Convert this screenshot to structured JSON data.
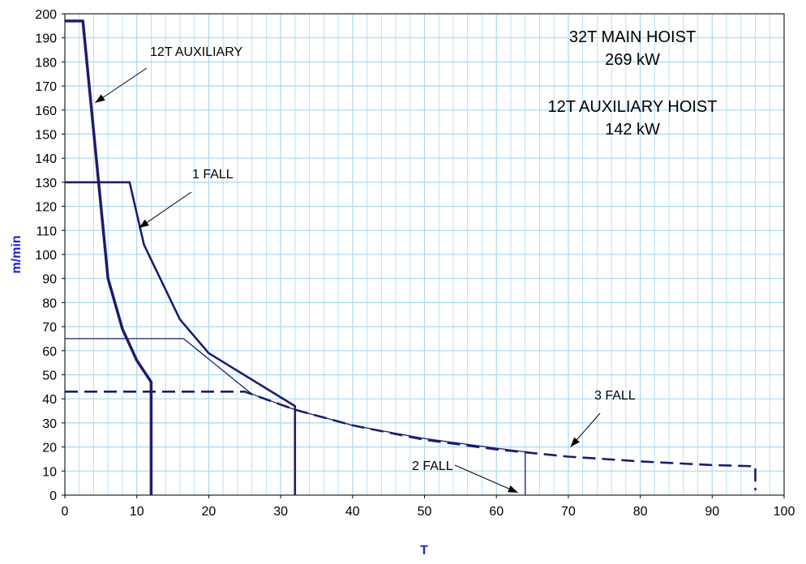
{
  "chart_data": {
    "type": "line",
    "title": "",
    "xlabel": "T",
    "ylabel": "m/min",
    "xlim": [
      0,
      100
    ],
    "ylim": [
      0,
      200
    ],
    "x_major_ticks": [
      0,
      10,
      20,
      30,
      40,
      50,
      60,
      70,
      80,
      90,
      100
    ],
    "x_minor_step": 2,
    "y_major_ticks": [
      0,
      10,
      20,
      30,
      40,
      50,
      60,
      70,
      80,
      90,
      100,
      110,
      120,
      130,
      140,
      150,
      160,
      170,
      180,
      190,
      200
    ],
    "grid": true,
    "colors": {
      "plot_background": "#ffffff",
      "grid": "#a6d9f2",
      "curve": "#1c1c6e",
      "axis_title": "#1f1fd0"
    },
    "series": [
      {
        "label": "12T AUXILIARY",
        "style": "thick",
        "x": [
          0,
          2.5,
          6,
          8,
          10,
          12,
          12
        ],
        "y": [
          197,
          197,
          90,
          69,
          56,
          47,
          0
        ]
      },
      {
        "label": "1 FALL",
        "style": "medium",
        "x": [
          0,
          9,
          11,
          16,
          20,
          32,
          32
        ],
        "y": [
          130,
          130,
          104,
          73,
          59,
          37,
          0
        ]
      },
      {
        "label": "2 FALL",
        "style": "thin",
        "x": [
          0,
          16.5,
          26,
          32,
          40,
          50,
          60,
          64,
          64
        ],
        "y": [
          65,
          65,
          42,
          35.5,
          29,
          23.5,
          19.5,
          18,
          0
        ]
      },
      {
        "label": "3 FALL",
        "style": "dashed",
        "x": [
          0,
          25,
          32,
          40,
          50,
          60,
          70,
          80,
          90,
          96,
          96
        ],
        "y": [
          43,
          43,
          35.5,
          29,
          23,
          19,
          16,
          14,
          12.5,
          12,
          2
        ]
      }
    ],
    "annotations": [
      {
        "text": "12T AUXILIARY",
        "arrow_to": [
          4.2,
          163
        ]
      },
      {
        "text": "1 FALL",
        "arrow_to": [
          10.3,
          111
        ]
      },
      {
        "text": "2 FALL",
        "arrow_to": [
          63,
          1
        ]
      },
      {
        "text": "3 FALL",
        "arrow_to": [
          70.3,
          20
        ]
      }
    ],
    "info_text": [
      "32T MAIN HOIST",
      "269 kW",
      "12T AUXILIARY HOIST",
      "142 kW"
    ]
  }
}
